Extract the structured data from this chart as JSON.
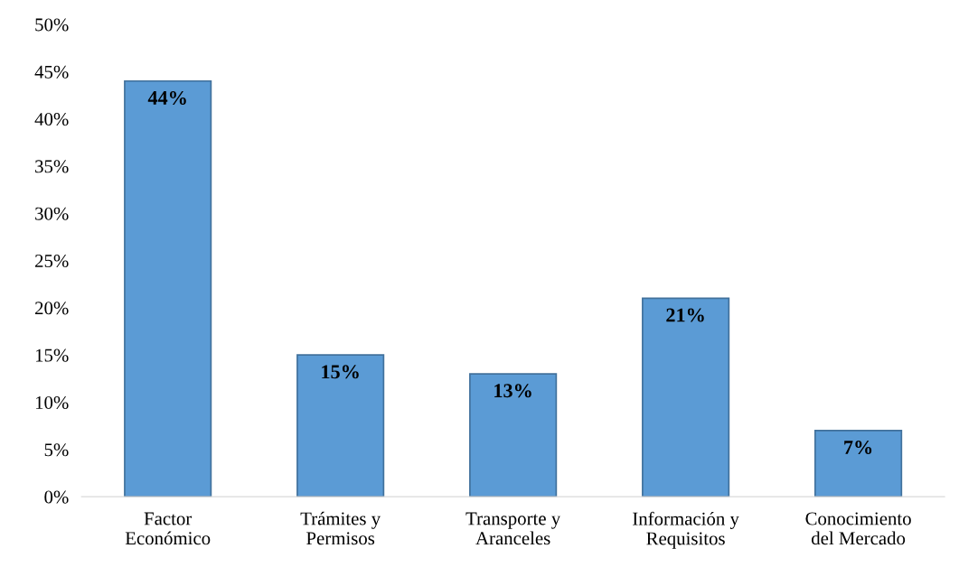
{
  "chart_data": {
    "type": "bar",
    "categories": [
      "Factor\nEconómico",
      "Trámites y\nPermisos",
      "Transporte y\nAranceles",
      "Información y\nRequisitos",
      "Conocimiento\ndel Mercado"
    ],
    "values": [
      44,
      15,
      13,
      21,
      7
    ],
    "value_labels": [
      "44%",
      "15%",
      "13%",
      "21%",
      "7%"
    ],
    "color": "#5b9bd5",
    "ylim": [
      0,
      50
    ],
    "yticks": [
      {
        "value": 0,
        "label": "0%"
      },
      {
        "value": 5,
        "label": "5%"
      },
      {
        "value": 10,
        "label": "10%"
      },
      {
        "value": 15,
        "label": "15%"
      },
      {
        "value": 20,
        "label": "20%"
      },
      {
        "value": 25,
        "label": "25%"
      },
      {
        "value": 30,
        "label": "30%"
      },
      {
        "value": 35,
        "label": "35%"
      },
      {
        "value": 40,
        "label": "40%"
      },
      {
        "value": 45,
        "label": "45%"
      },
      {
        "value": 50,
        "label": "50%"
      }
    ],
    "grid": false,
    "legend": false
  }
}
